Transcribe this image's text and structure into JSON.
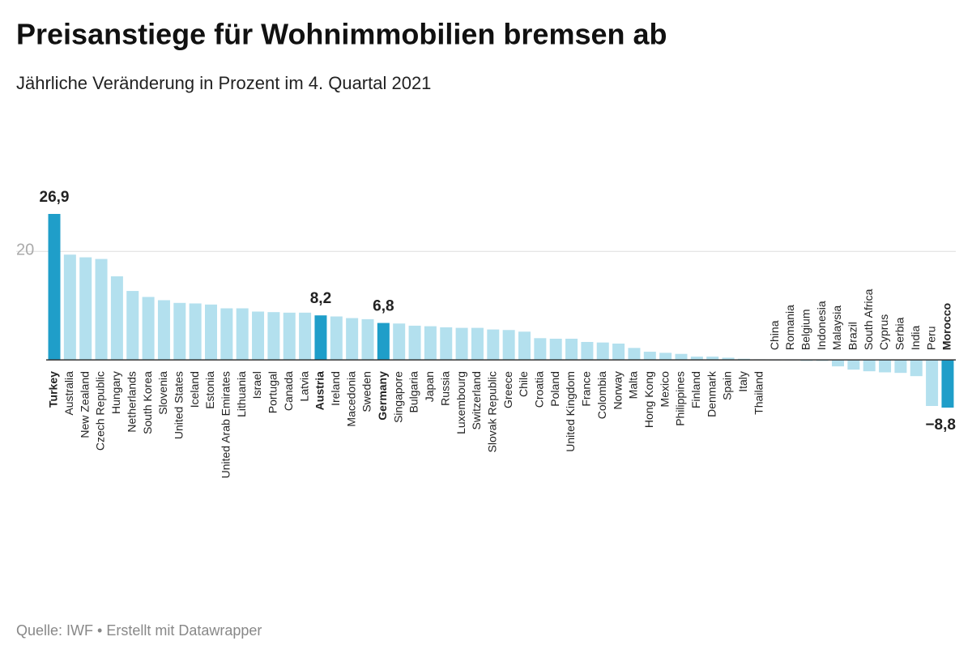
{
  "chart_data": {
    "type": "bar",
    "title": "Preisanstiege für Wohnimmobilien bremsen ab",
    "subtitle": "Jährliche Veränderung in Prozent im 4. Quartal 2021",
    "source": "Quelle: IWF • Erstellt mit Datawrapper",
    "categories": [
      "Turkey",
      "Australia",
      "New Zealand",
      "Czech Republic",
      "Hungary",
      "Netherlands",
      "South Korea",
      "Slovenia",
      "United States",
      "Iceland",
      "Estonia",
      "United Arab Emirates",
      "Lithuania",
      "Israel",
      "Portugal",
      "Canada",
      "Latvia",
      "Austria",
      "Ireland",
      "Macedonia",
      "Sweden",
      "Germany",
      "Singapore",
      "Bulgaria",
      "Japan",
      "Russia",
      "Luxembourg",
      "Switzerland",
      "Slovak Republic",
      "Greece",
      "Chile",
      "Croatia",
      "Poland",
      "United Kingdom",
      "France",
      "Colombia",
      "Norway",
      "Malta",
      "Hong Kong",
      "Mexico",
      "Philippines",
      "Finland",
      "Denmark",
      "Spain",
      "Italy",
      "Thailand",
      "China",
      "Romania",
      "Belgium",
      "Indonesia",
      "Malaysia",
      "Brazil",
      "South Africa",
      "Cyprus",
      "Serbia",
      "India",
      "Peru",
      "Morocco"
    ],
    "values": [
      26.9,
      19.4,
      18.9,
      18.6,
      15.4,
      12.7,
      11.6,
      11.0,
      10.5,
      10.4,
      10.2,
      9.5,
      9.5,
      8.9,
      8.8,
      8.7,
      8.7,
      8.2,
      8.0,
      7.7,
      7.5,
      6.8,
      6.7,
      6.3,
      6.2,
      6.0,
      5.9,
      5.9,
      5.6,
      5.5,
      5.2,
      4.0,
      3.9,
      3.9,
      3.3,
      3.2,
      3.0,
      2.2,
      1.5,
      1.3,
      1.1,
      0.6,
      0.6,
      0.4,
      0.2,
      0.1,
      -0.1,
      -0.1,
      -0.2,
      -0.2,
      -1.2,
      -1.8,
      -2.1,
      -2.3,
      -2.4,
      -3.0,
      -8.5,
      -8.8
    ],
    "value_labels": [
      "26,9",
      null,
      null,
      null,
      null,
      null,
      null,
      null,
      null,
      null,
      null,
      null,
      null,
      null,
      null,
      null,
      null,
      "8,2",
      null,
      null,
      null,
      "6,8",
      null,
      null,
      null,
      null,
      null,
      null,
      null,
      null,
      null,
      null,
      null,
      null,
      null,
      null,
      null,
      null,
      null,
      null,
      null,
      null,
      null,
      null,
      null,
      null,
      null,
      null,
      null,
      null,
      null,
      null,
      null,
      null,
      null,
      null,
      null,
      "−8,8"
    ],
    "color": "#b3e0ee",
    "highlight_color": "#1f9ec9",
    "ylim": [
      -8.8,
      26.9
    ],
    "yticks": [
      20
    ],
    "grid": true
  }
}
